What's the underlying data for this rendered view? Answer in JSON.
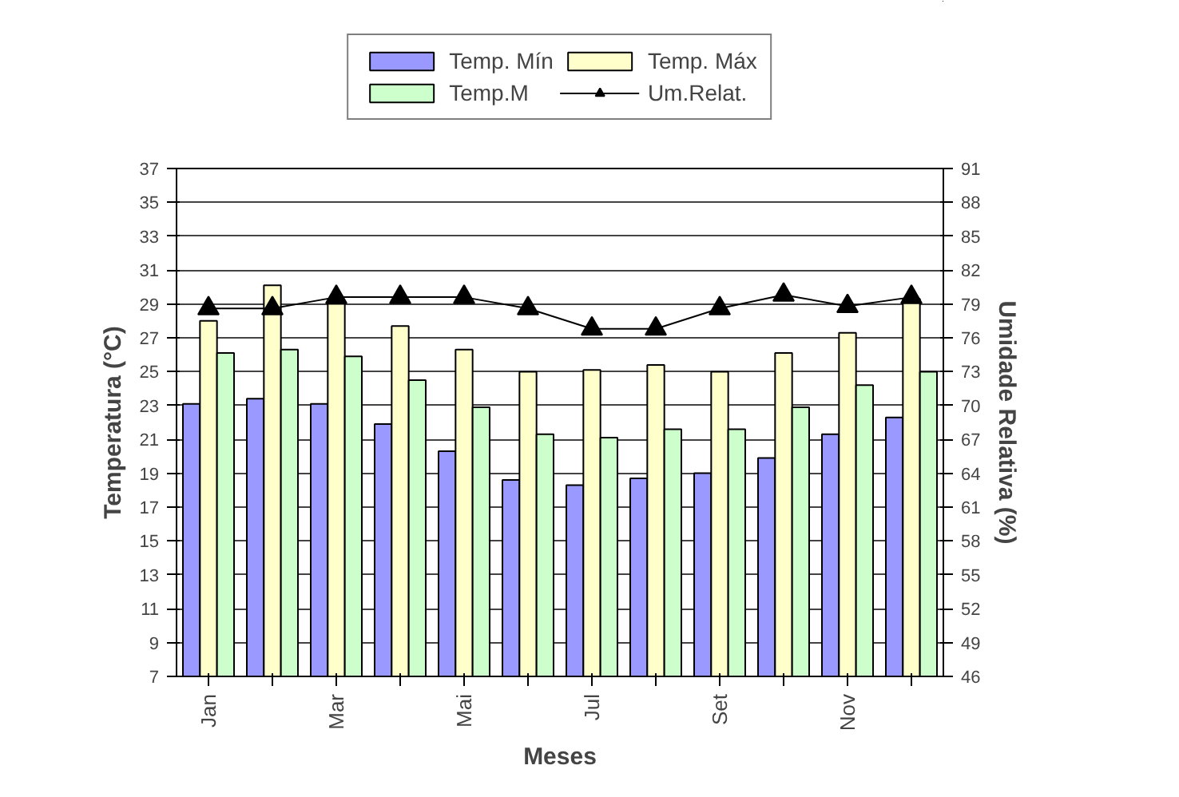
{
  "chart_data": {
    "type": "bar",
    "xlabel": "Meses",
    "ylabel": "Temperatura (°C)",
    "y2label": "Umidade Relativa (%)",
    "categories": [
      "Jan",
      null,
      "Mar",
      null,
      "Mai",
      null,
      "Jul",
      null,
      "Set",
      null,
      "Nov",
      null
    ],
    "series": [
      {
        "name": "Temp. Mín",
        "color": "#9999ff",
        "values": [
          23.1,
          23.4,
          23.1,
          21.9,
          20.3,
          18.6,
          18.3,
          18.7,
          19.0,
          19.9,
          21.3,
          22.3
        ]
      },
      {
        "name": "Temp. Máx",
        "color": "#ffffcc",
        "values": [
          28.0,
          30.1,
          29.0,
          27.7,
          26.3,
          25.0,
          25.1,
          25.4,
          25.0,
          26.1,
          27.3,
          29.3
        ]
      },
      {
        "name": "Temp.M",
        "color": "#ccffcc",
        "values": [
          26.1,
          26.3,
          25.9,
          24.5,
          22.9,
          21.3,
          21.1,
          21.6,
          21.6,
          22.9,
          24.2,
          25.0
        ]
      },
      {
        "name": "Um.Relat.",
        "color": "#000000",
        "type": "line",
        "axis": "y2",
        "marker": "triangle",
        "values": [
          78.6,
          78.6,
          79.6,
          79.6,
          79.6,
          78.6,
          76.8,
          76.8,
          78.6,
          79.8,
          78.8,
          79.6
        ]
      }
    ],
    "ylim": [
      7,
      37
    ],
    "yticks": [
      7,
      9,
      11,
      13,
      15,
      17,
      19,
      21,
      23,
      25,
      27,
      29,
      31,
      33,
      35,
      37
    ],
    "y2lim": [
      46,
      91
    ],
    "y2ticks": [
      46,
      49,
      52,
      55,
      58,
      61,
      64,
      67,
      70,
      73,
      76,
      79,
      82,
      85,
      88,
      91
    ],
    "grid": "y",
    "legend": "top"
  }
}
